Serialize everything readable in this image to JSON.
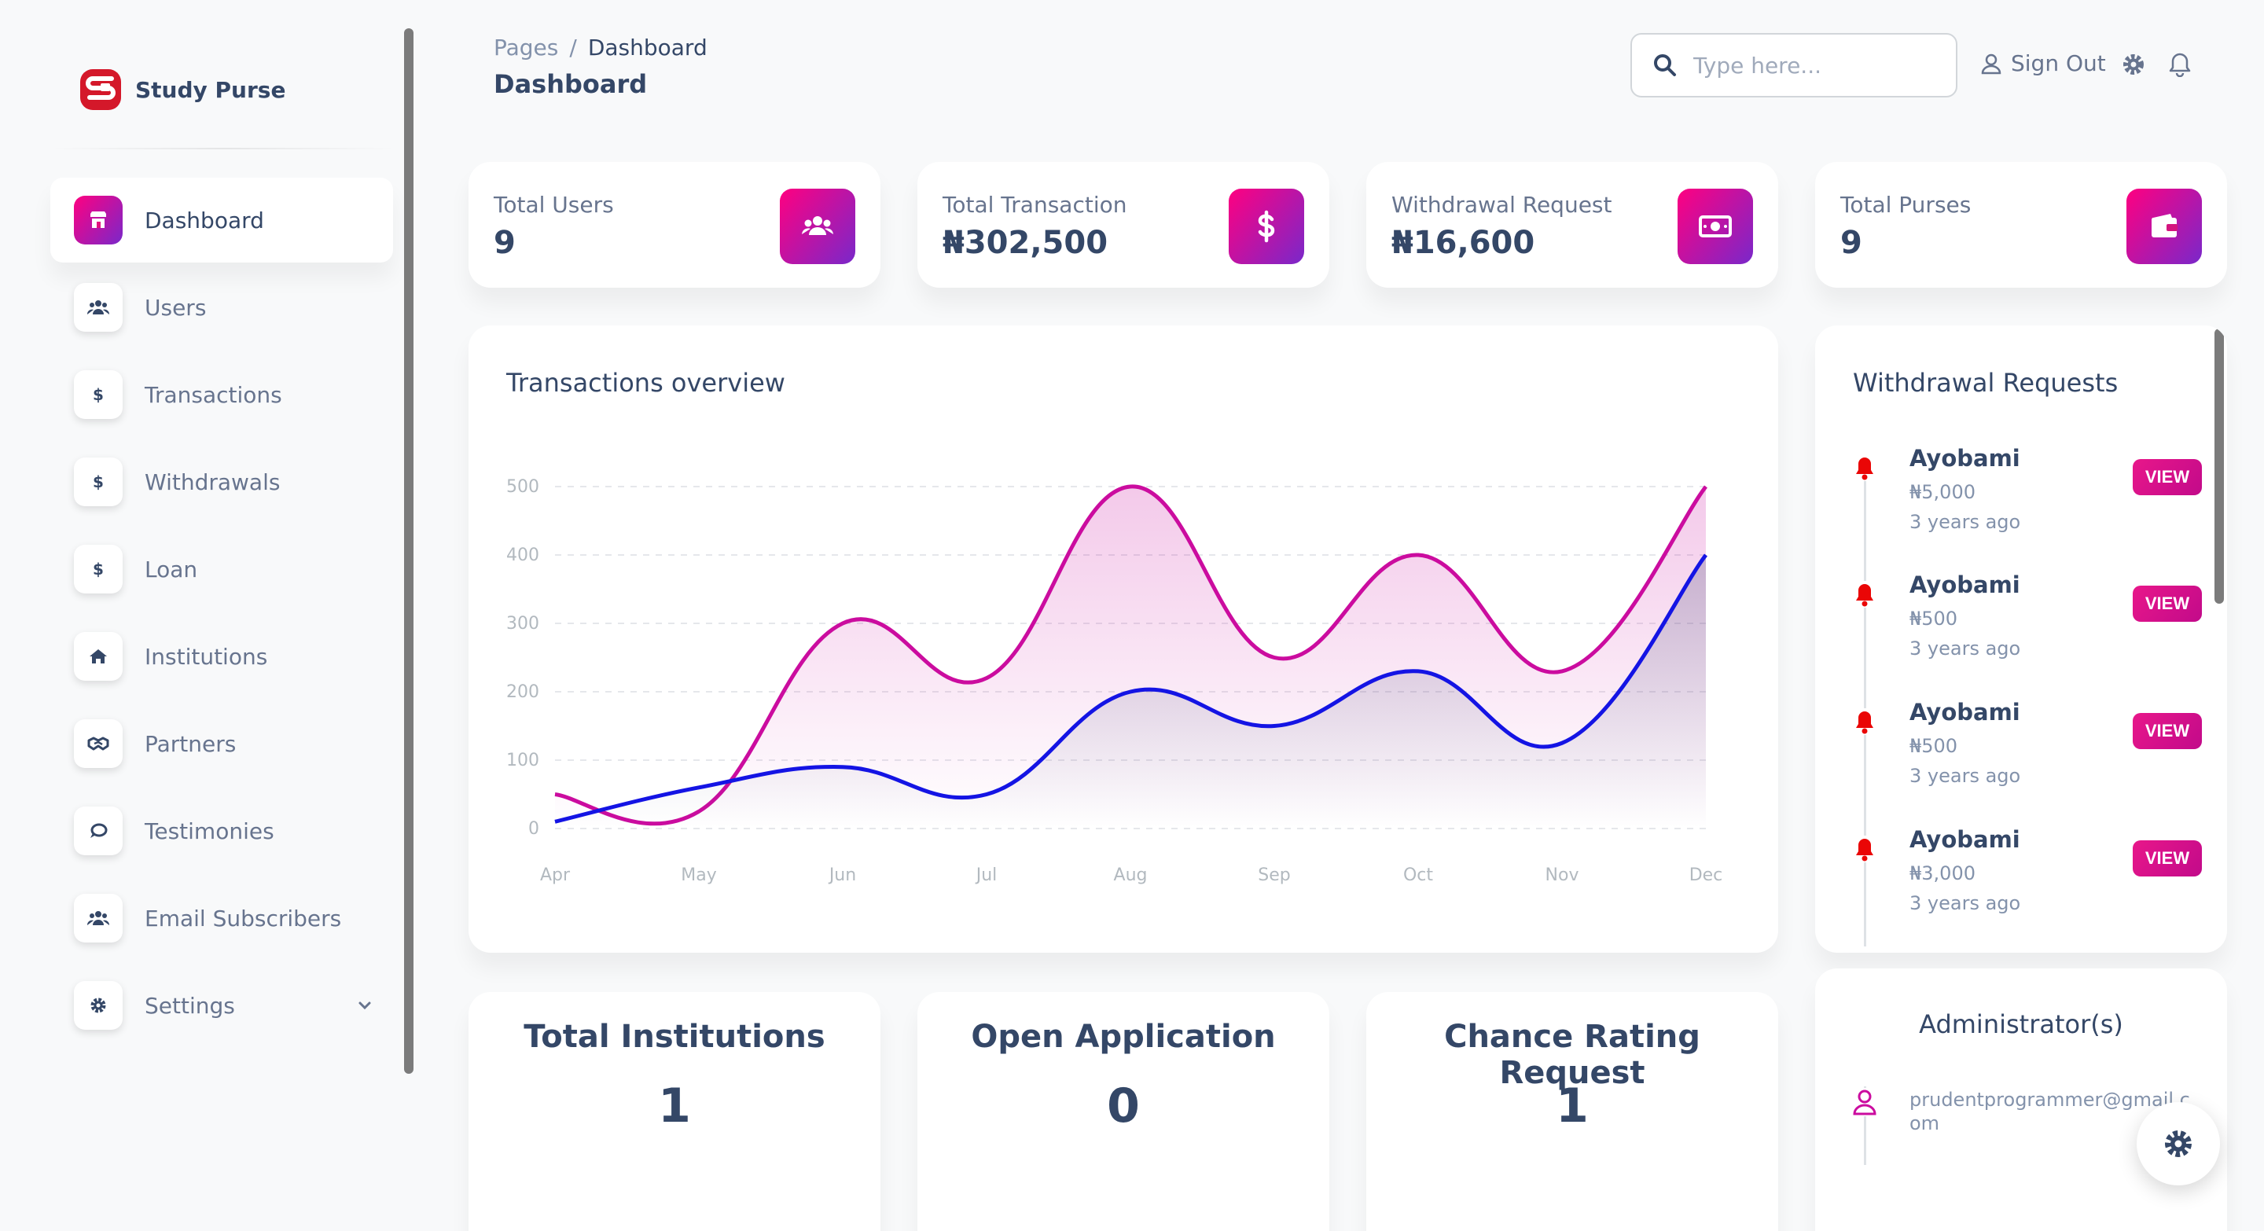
{
  "brand": {
    "name": "Study Purse"
  },
  "sidebar": {
    "items": [
      {
        "label": "Dashboard",
        "icon": "store-icon",
        "active": true
      },
      {
        "label": "Users",
        "icon": "users-icon"
      },
      {
        "label": "Transactions",
        "icon": "dollar-icon"
      },
      {
        "label": "Withdrawals",
        "icon": "dollar-icon"
      },
      {
        "label": "Loan",
        "icon": "dollar-icon"
      },
      {
        "label": "Institutions",
        "icon": "home-icon"
      },
      {
        "label": "Partners",
        "icon": "handshake-icon"
      },
      {
        "label": "Testimonies",
        "icon": "comment-icon"
      },
      {
        "label": "Email Subscribers",
        "icon": "users-icon"
      },
      {
        "label": "Settings",
        "icon": "gear-icon"
      }
    ]
  },
  "header": {
    "breadcrumb_root": "Pages",
    "breadcrumb_sep": "/",
    "breadcrumb_current": "Dashboard",
    "title": "Dashboard",
    "search_placeholder": "Type here...",
    "sign_out": "Sign Out"
  },
  "stats": [
    {
      "label": "Total Users",
      "value": "9",
      "icon": "users-icon"
    },
    {
      "label": "Total Transaction",
      "value": "₦302,500",
      "icon": "dollar-icon"
    },
    {
      "label": "Withdrawal Request",
      "value": "₦16,600",
      "icon": "money-bill-icon"
    },
    {
      "label": "Total Purses",
      "value": "9",
      "icon": "wallet-icon"
    }
  ],
  "chart_data": {
    "type": "line",
    "title": "Transactions overview",
    "categories": [
      "Apr",
      "May",
      "Jun",
      "Jul",
      "Aug",
      "Sep",
      "Oct",
      "Nov",
      "Dec"
    ],
    "ylim": [
      0,
      500
    ],
    "yticks": [
      "0",
      "100",
      "200",
      "300",
      "400",
      "500"
    ],
    "grid": true,
    "series": [
      {
        "values": [
          50,
          25,
          300,
          220,
          500,
          250,
          400,
          230,
          500
        ],
        "color": "#cb0c9f"
      },
      {
        "values": [
          10,
          60,
          90,
          50,
          200,
          150,
          230,
          125,
          400
        ],
        "color": "#1414e4"
      }
    ]
  },
  "withdrawals": {
    "title": "Withdrawal Requests",
    "view_label": "VIEW",
    "items": [
      {
        "name": "Ayobami",
        "amount": "₦5,000",
        "time": "3 years ago"
      },
      {
        "name": "Ayobami",
        "amount": "₦500",
        "time": "3 years ago"
      },
      {
        "name": "Ayobami",
        "amount": "₦500",
        "time": "3 years ago"
      },
      {
        "name": "Ayobami",
        "amount": "₦3,000",
        "time": "3 years ago"
      }
    ]
  },
  "counters": [
    {
      "title": "Total Institutions",
      "value": "1"
    },
    {
      "title": "Open Application",
      "value": "0"
    },
    {
      "title": "Chance Rating Request",
      "value": "1"
    }
  ],
  "admins": {
    "title": "Administrator(s)",
    "emails": [
      "prudentprogrammer@gmail.com"
    ]
  },
  "colors": {
    "accent_start": "#7928ca",
    "accent_end": "#ff0080",
    "text": "#344767",
    "muted": "#67748e"
  }
}
